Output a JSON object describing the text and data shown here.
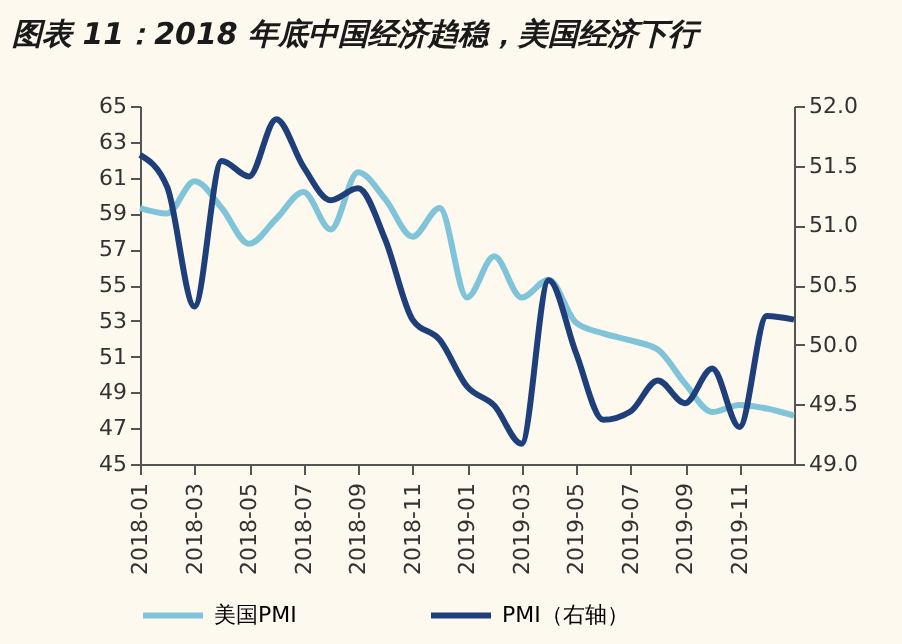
{
  "chart_data": {
    "type": "line",
    "title": "图表 11：2018 年底中国经济趋稳，美国经济下行",
    "categories": [
      "2018-01",
      null,
      "2018-03",
      null,
      "2018-05",
      null,
      "2018-07",
      null,
      "2018-09",
      null,
      "2018-11",
      null,
      "2019-01",
      null,
      "2019-03",
      null,
      "2019-05",
      null,
      "2019-07",
      null,
      "2019-09",
      null,
      "2019-11",
      null,
      null
    ],
    "series": [
      {
        "name": "美国PMI",
        "color": "#7fc4d8",
        "values": [
          59.3,
          59.0,
          60.8,
          59.3,
          57.3,
          58.7,
          60.2,
          58.1,
          61.3,
          59.8,
          57.7,
          59.3,
          54.3,
          56.6,
          54.3,
          55.3,
          52.9,
          52.3,
          51.9,
          51.4,
          49.5,
          47.9,
          48.3,
          48.1,
          47.7
        ]
      },
      {
        "name": "PMI（右轴）",
        "color": "#1f3f7a",
        "axis": "y2",
        "values": [
          51.59,
          51.32,
          50.32,
          51.54,
          51.41,
          51.89,
          51.49,
          51.21,
          51.31,
          50.88,
          50.21,
          50.04,
          49.65,
          49.49,
          49.17,
          50.54,
          49.93,
          49.37,
          49.44,
          49.7,
          49.51,
          49.8,
          49.31,
          50.24,
          50.21
        ]
      }
    ],
    "ylim": [
      45,
      65
    ],
    "yticks": [
      45,
      47,
      49,
      51,
      53,
      55,
      57,
      59,
      61,
      63,
      65
    ],
    "y2lim": [
      49.0,
      52.0
    ],
    "y2ticks": [
      {
        "value": 49,
        "label": "49.0"
      },
      {
        "value": 49.5,
        "label": "49.5"
      },
      {
        "value": 50,
        "label": "50.0"
      },
      {
        "value": 50.5,
        "label": "50.5"
      },
      {
        "value": 51,
        "label": "51.0"
      },
      {
        "value": 51.5,
        "label": "51.5"
      },
      {
        "value": 52,
        "label": "52.0"
      }
    ],
    "grid": false,
    "legend": "bottom",
    "marker": "none",
    "line_style": "solid"
  }
}
